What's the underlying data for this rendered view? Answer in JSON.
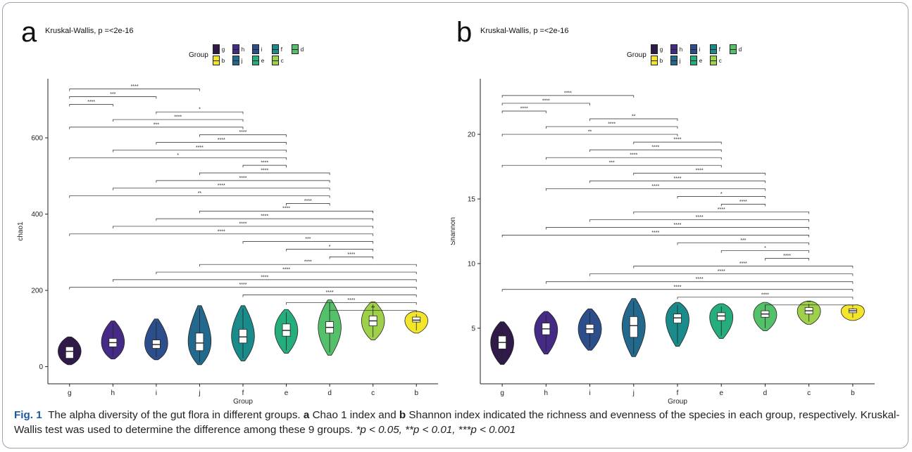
{
  "caption": {
    "fig_label": "Fig. 1",
    "text1": "The alpha diversity of the gut flora in different groups.",
    "a_label": "a",
    "text2": "Chao 1 index and",
    "b_label": "b",
    "text3": "Shannon index indicated the richness and evenness of the species in each group, respectively. Kruskal-Wallis test was used to determine the difference among these 9 groups.",
    "sig": "*p < 0.05, **p < 0.01, ***p < 0.001"
  },
  "chart_data": [
    {
      "type": "violin",
      "panel_label": "a",
      "subtitle": "Kruskal-Wallis, p =<2e-16",
      "legend": {
        "title": "Group",
        "placement": "top",
        "entries": [
          "g",
          "h",
          "i",
          "f",
          "d",
          "b",
          "j",
          "e",
          "c"
        ]
      },
      "xlabel": "Group",
      "ylabel": "chao1",
      "categories": [
        "g",
        "h",
        "i",
        "j",
        "f",
        "e",
        "d",
        "c",
        "b"
      ],
      "colors": [
        "#2f1a49",
        "#452a86",
        "#2c4f8b",
        "#23698e",
        "#1a8b8a",
        "#26ad7c",
        "#55c06a",
        "#9fd04a",
        "#f3e52a"
      ],
      "ylim": [
        -45,
        755
      ],
      "yticks": [
        0,
        200,
        400,
        600
      ],
      "stats": [
        {
          "q1": 22,
          "median": 40,
          "q3": 52,
          "lo": 5,
          "hi": 78
        },
        {
          "q1": 52,
          "median": 63,
          "q3": 74,
          "lo": 20,
          "hi": 120
        },
        {
          "q1": 48,
          "median": 58,
          "q3": 70,
          "lo": 18,
          "hi": 125
        },
        {
          "q1": 42,
          "median": 62,
          "q3": 88,
          "lo": 5,
          "hi": 160
        },
        {
          "q1": 62,
          "median": 78,
          "q3": 98,
          "lo": 15,
          "hi": 160
        },
        {
          "q1": 80,
          "median": 95,
          "q3": 112,
          "lo": 35,
          "hi": 150
        },
        {
          "q1": 88,
          "median": 103,
          "q3": 118,
          "lo": 30,
          "hi": 175
        },
        {
          "q1": 107,
          "median": 120,
          "q3": 133,
          "lo": 70,
          "hi": 170
        },
        {
          "q1": 117,
          "median": 122,
          "q3": 130,
          "lo": 88,
          "hi": 145
        }
      ],
      "comparisons": [
        {
          "from": "g",
          "to": "j",
          "y": 728,
          "label": "****"
        },
        {
          "from": "g",
          "to": "i",
          "y": 708,
          "label": "***"
        },
        {
          "from": "g",
          "to": "h",
          "y": 688,
          "label": "****"
        },
        {
          "from": "i",
          "to": "f",
          "y": 668,
          "label": "*"
        },
        {
          "from": "h",
          "to": "f",
          "y": 648,
          "label": "****"
        },
        {
          "from": "g",
          "to": "f",
          "y": 628,
          "label": "***"
        },
        {
          "from": "j",
          "to": "e",
          "y": 608,
          "label": "****"
        },
        {
          "from": "i",
          "to": "e",
          "y": 588,
          "label": "****"
        },
        {
          "from": "h",
          "to": "e",
          "y": 568,
          "label": "****"
        },
        {
          "from": "g",
          "to": "e",
          "y": 548,
          "label": "*"
        },
        {
          "from": "f",
          "to": "e",
          "y": 528,
          "label": "****"
        },
        {
          "from": "j",
          "to": "d",
          "y": 508,
          "label": "****"
        },
        {
          "from": "i",
          "to": "d",
          "y": 488,
          "label": "****"
        },
        {
          "from": "h",
          "to": "d",
          "y": 468,
          "label": "****"
        },
        {
          "from": "g",
          "to": "d",
          "y": 448,
          "label": "**"
        },
        {
          "from": "e",
          "to": "d",
          "y": 428,
          "label": "****"
        },
        {
          "from": "j",
          "to": "c",
          "y": 408,
          "label": "****"
        },
        {
          "from": "i",
          "to": "c",
          "y": 388,
          "label": "****"
        },
        {
          "from": "h",
          "to": "c",
          "y": 368,
          "label": "****"
        },
        {
          "from": "g",
          "to": "c",
          "y": 348,
          "label": "****"
        },
        {
          "from": "f",
          "to": "c",
          "y": 328,
          "label": "***"
        },
        {
          "from": "e",
          "to": "c",
          "y": 308,
          "label": "*"
        },
        {
          "from": "d",
          "to": "c",
          "y": 288,
          "label": "****"
        },
        {
          "from": "j",
          "to": "b",
          "y": 268,
          "label": "****"
        },
        {
          "from": "i",
          "to": "b",
          "y": 248,
          "label": "****"
        },
        {
          "from": "h",
          "to": "b",
          "y": 228,
          "label": "****"
        },
        {
          "from": "g",
          "to": "b",
          "y": 208,
          "label": "****"
        },
        {
          "from": "f",
          "to": "b",
          "y": 188,
          "label": "****"
        },
        {
          "from": "e",
          "to": "b",
          "y": 168,
          "label": "****"
        },
        {
          "from": "d",
          "to": "b",
          "y": 148,
          "label": "**"
        }
      ]
    },
    {
      "type": "violin",
      "panel_label": "b",
      "subtitle": "Kruskal-Wallis, p =<2e-16",
      "legend": {
        "title": "Group",
        "placement": "top",
        "entries": [
          "g",
          "h",
          "i",
          "f",
          "d",
          "b",
          "j",
          "e",
          "c"
        ]
      },
      "xlabel": "Group",
      "ylabel": "Shannon",
      "categories": [
        "g",
        "h",
        "i",
        "j",
        "f",
        "e",
        "d",
        "c",
        "b"
      ],
      "colors": [
        "#2f1a49",
        "#452a86",
        "#2c4f8b",
        "#23698e",
        "#1a8b8a",
        "#26ad7c",
        "#55c06a",
        "#9fd04a",
        "#f3e52a"
      ],
      "ylim": [
        0.7,
        24.3
      ],
      "yticks": [
        5,
        10,
        15,
        20
      ],
      "stats": [
        {
          "q1": 3.4,
          "median": 3.9,
          "q3": 4.4,
          "lo": 2.2,
          "hi": 5.5
        },
        {
          "q1": 4.5,
          "median": 4.95,
          "q3": 5.4,
          "lo": 3.0,
          "hi": 6.3
        },
        {
          "q1": 4.6,
          "median": 4.95,
          "q3": 5.3,
          "lo": 3.3,
          "hi": 6.5
        },
        {
          "q1": 4.3,
          "median": 5.2,
          "q3": 5.9,
          "lo": 2.8,
          "hi": 7.3
        },
        {
          "q1": 5.4,
          "median": 5.8,
          "q3": 6.1,
          "lo": 3.6,
          "hi": 7.0
        },
        {
          "q1": 5.6,
          "median": 5.95,
          "q3": 6.2,
          "lo": 4.2,
          "hi": 6.9
        },
        {
          "q1": 5.85,
          "median": 6.1,
          "q3": 6.35,
          "lo": 4.8,
          "hi": 7.0
        },
        {
          "q1": 6.1,
          "median": 6.35,
          "q3": 6.6,
          "lo": 5.3,
          "hi": 7.1
        },
        {
          "q1": 6.2,
          "median": 6.35,
          "q3": 6.5,
          "lo": 5.6,
          "hi": 6.8
        }
      ],
      "comparisons": [
        {
          "from": "g",
          "to": "j",
          "y": 23.0,
          "label": "****"
        },
        {
          "from": "g",
          "to": "i",
          "y": 22.4,
          "label": "****"
        },
        {
          "from": "g",
          "to": "h",
          "y": 21.8,
          "label": "****"
        },
        {
          "from": "i",
          "to": "f",
          "y": 21.2,
          "label": "**"
        },
        {
          "from": "h",
          "to": "f",
          "y": 20.6,
          "label": "****"
        },
        {
          "from": "g",
          "to": "f",
          "y": 20.0,
          "label": "**"
        },
        {
          "from": "j",
          "to": "e",
          "y": 19.4,
          "label": "****"
        },
        {
          "from": "i",
          "to": "e",
          "y": 18.8,
          "label": "****"
        },
        {
          "from": "h",
          "to": "e",
          "y": 18.2,
          "label": "****"
        },
        {
          "from": "g",
          "to": "e",
          "y": 17.6,
          "label": "***"
        },
        {
          "from": "j",
          "to": "d",
          "y": 17.0,
          "label": "****"
        },
        {
          "from": "i",
          "to": "d",
          "y": 16.4,
          "label": "****"
        },
        {
          "from": "h",
          "to": "d",
          "y": 15.8,
          "label": "****"
        },
        {
          "from": "f",
          "to": "d",
          "y": 15.2,
          "label": "*"
        },
        {
          "from": "e",
          "to": "d",
          "y": 14.6,
          "label": "****"
        },
        {
          "from": "j",
          "to": "c",
          "y": 14.0,
          "label": "****"
        },
        {
          "from": "i",
          "to": "c",
          "y": 13.4,
          "label": "****"
        },
        {
          "from": "h",
          "to": "c",
          "y": 12.8,
          "label": "****"
        },
        {
          "from": "g",
          "to": "c",
          "y": 12.2,
          "label": "****"
        },
        {
          "from": "f",
          "to": "c",
          "y": 11.6,
          "label": "***"
        },
        {
          "from": "e",
          "to": "c",
          "y": 11.0,
          "label": "*"
        },
        {
          "from": "d",
          "to": "c",
          "y": 10.4,
          "label": "****"
        },
        {
          "from": "j",
          "to": "b",
          "y": 9.8,
          "label": "****"
        },
        {
          "from": "i",
          "to": "b",
          "y": 9.2,
          "label": "****"
        },
        {
          "from": "h",
          "to": "b",
          "y": 8.6,
          "label": "****"
        },
        {
          "from": "g",
          "to": "b",
          "y": 8.0,
          "label": "****"
        },
        {
          "from": "f",
          "to": "b",
          "y": 7.4,
          "label": "****"
        },
        {
          "from": "d",
          "to": "b",
          "y": 6.8,
          "label": "**"
        }
      ]
    }
  ]
}
